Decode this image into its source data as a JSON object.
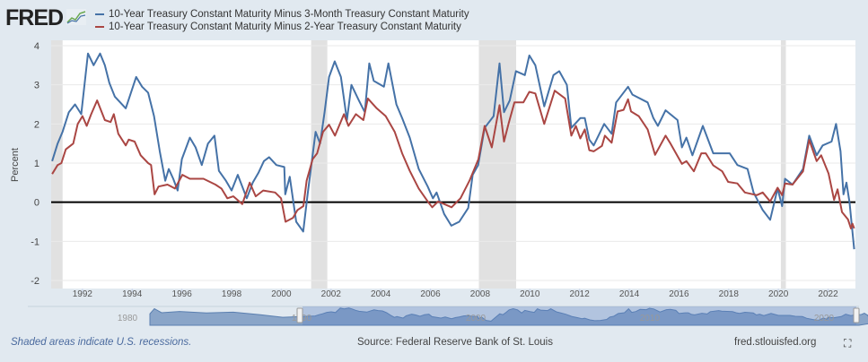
{
  "header": {
    "logo_text": "FRED",
    "legend": [
      {
        "label": "10-Year Treasury Constant Maturity Minus 3-Month Treasury Constant Maturity",
        "color": "#4572a7"
      },
      {
        "label": "10-Year Treasury Constant Maturity Minus 2-Year Treasury Constant Maturity",
        "color": "#aa4643"
      }
    ]
  },
  "footer": {
    "note": "Shaded areas indicate U.S. recessions.",
    "source": "Source: Federal Reserve Bank of St. Louis",
    "link": "fred.stlouisfed.org",
    "fullscreen_icon": "fullscreen-icon"
  },
  "navigator": {
    "labels": [
      "1980",
      "1990",
      "2000",
      "2010",
      "2020"
    ]
  },
  "chart_data": {
    "type": "line",
    "title": "",
    "xlabel": "",
    "ylabel": "Percent",
    "xlim": [
      1990.74,
      2023.1
    ],
    "ylim": [
      -2,
      4
    ],
    "grid": true,
    "legend_position": "top-left",
    "x_ticks": [
      "1992",
      "1994",
      "1996",
      "1998",
      "2000",
      "2002",
      "2004",
      "2006",
      "2008",
      "2010",
      "2012",
      "2014",
      "2016",
      "2018",
      "2020",
      "2022"
    ],
    "y_ticks": [
      "-2",
      "-1",
      "0",
      "1",
      "2",
      "3",
      "4"
    ],
    "recessions": [
      [
        1990.55,
        1991.2
      ],
      [
        2001.2,
        2001.85
      ],
      [
        2007.95,
        2009.45
      ],
      [
        2020.1,
        2020.3
      ]
    ],
    "series": [
      {
        "name": "10-Year Treasury Constant Maturity Minus 3-Month Treasury Constant Maturity",
        "color": "#4572a7",
        "points": [
          [
            1990.78,
            1.05
          ],
          [
            1991.0,
            1.5
          ],
          [
            1991.2,
            1.8
          ],
          [
            1991.45,
            2.3
          ],
          [
            1991.7,
            2.5
          ],
          [
            1991.95,
            2.25
          ],
          [
            1992.22,
            3.8
          ],
          [
            1992.45,
            3.5
          ],
          [
            1992.71,
            3.8
          ],
          [
            1992.9,
            3.5
          ],
          [
            1993.08,
            3.05
          ],
          [
            1993.3,
            2.7
          ],
          [
            1993.74,
            2.4
          ],
          [
            1994.16,
            3.2
          ],
          [
            1994.4,
            2.95
          ],
          [
            1994.64,
            2.8
          ],
          [
            1994.88,
            2.2
          ],
          [
            1995.11,
            1.3
          ],
          [
            1995.33,
            0.55
          ],
          [
            1995.47,
            0.85
          ],
          [
            1995.65,
            0.6
          ],
          [
            1995.83,
            0.3
          ],
          [
            1996.0,
            1.1
          ],
          [
            1996.32,
            1.65
          ],
          [
            1996.55,
            1.4
          ],
          [
            1996.8,
            0.95
          ],
          [
            1997.05,
            1.5
          ],
          [
            1997.31,
            1.7
          ],
          [
            1997.49,
            0.8
          ],
          [
            1997.77,
            0.55
          ],
          [
            1998.0,
            0.3
          ],
          [
            1998.25,
            0.7
          ],
          [
            1998.61,
            0.1
          ],
          [
            1998.85,
            0.5
          ],
          [
            1999.08,
            0.75
          ],
          [
            1999.3,
            1.05
          ],
          [
            1999.51,
            1.15
          ],
          [
            1999.8,
            0.95
          ],
          [
            2000.12,
            0.9
          ],
          [
            2000.16,
            0.2
          ],
          [
            2000.34,
            0.65
          ],
          [
            2000.6,
            -0.5
          ],
          [
            2000.88,
            -0.75
          ],
          [
            2001.06,
            0.2
          ],
          [
            2001.38,
            1.8
          ],
          [
            2001.56,
            1.5
          ],
          [
            2001.74,
            2.3
          ],
          [
            2001.92,
            3.2
          ],
          [
            2002.15,
            3.6
          ],
          [
            2002.4,
            3.2
          ],
          [
            2002.64,
            2.1
          ],
          [
            2002.82,
            3.0
          ],
          [
            2003.12,
            2.6
          ],
          [
            2003.36,
            2.3
          ],
          [
            2003.54,
            3.55
          ],
          [
            2003.72,
            3.1
          ],
          [
            2004.13,
            2.95
          ],
          [
            2004.31,
            3.55
          ],
          [
            2004.63,
            2.5
          ],
          [
            2004.86,
            2.15
          ],
          [
            2005.17,
            1.65
          ],
          [
            2005.53,
            0.85
          ],
          [
            2005.89,
            0.4
          ],
          [
            2006.1,
            0.1
          ],
          [
            2006.25,
            0.25
          ],
          [
            2006.55,
            -0.3
          ],
          [
            2006.84,
            -0.6
          ],
          [
            2007.16,
            -0.5
          ],
          [
            2007.52,
            -0.15
          ],
          [
            2007.7,
            0.7
          ],
          [
            2007.92,
            0.95
          ],
          [
            2008.18,
            1.9
          ],
          [
            2008.54,
            2.2
          ],
          [
            2008.78,
            3.55
          ],
          [
            2008.96,
            2.3
          ],
          [
            2009.19,
            2.6
          ],
          [
            2009.44,
            3.35
          ],
          [
            2009.8,
            3.25
          ],
          [
            2009.98,
            3.75
          ],
          [
            2010.22,
            3.5
          ],
          [
            2010.58,
            2.45
          ],
          [
            2010.95,
            3.25
          ],
          [
            2011.18,
            3.35
          ],
          [
            2011.49,
            3.0
          ],
          [
            2011.67,
            1.9
          ],
          [
            2012.03,
            2.15
          ],
          [
            2012.21,
            2.15
          ],
          [
            2012.39,
            1.6
          ],
          [
            2012.57,
            1.45
          ],
          [
            2012.99,
            2.0
          ],
          [
            2013.29,
            1.75
          ],
          [
            2013.47,
            2.55
          ],
          [
            2013.95,
            2.95
          ],
          [
            2014.13,
            2.75
          ],
          [
            2014.74,
            2.55
          ],
          [
            2014.97,
            2.15
          ],
          [
            2015.15,
            1.95
          ],
          [
            2015.46,
            2.35
          ],
          [
            2015.94,
            2.1
          ],
          [
            2016.12,
            1.4
          ],
          [
            2016.3,
            1.65
          ],
          [
            2016.54,
            1.2
          ],
          [
            2016.96,
            1.95
          ],
          [
            2017.38,
            1.25
          ],
          [
            2018.04,
            1.25
          ],
          [
            2018.35,
            0.95
          ],
          [
            2018.76,
            0.85
          ],
          [
            2019.0,
            0.25
          ],
          [
            2019.37,
            -0.2
          ],
          [
            2019.67,
            -0.45
          ],
          [
            2019.97,
            0.35
          ],
          [
            2020.15,
            -0.1
          ],
          [
            2020.27,
            0.6
          ],
          [
            2020.57,
            0.45
          ],
          [
            2020.99,
            0.85
          ],
          [
            2021.24,
            1.7
          ],
          [
            2021.54,
            1.2
          ],
          [
            2021.78,
            1.45
          ],
          [
            2022.14,
            1.55
          ],
          [
            2022.32,
            2.0
          ],
          [
            2022.5,
            1.3
          ],
          [
            2022.62,
            0.2
          ],
          [
            2022.74,
            0.5
          ],
          [
            2022.86,
            0.0
          ],
          [
            2023.05,
            -1.2
          ]
        ]
      },
      {
        "name": "10-Year Treasury Constant Maturity Minus 2-Year Treasury Constant Maturity",
        "color": "#aa4643",
        "points": [
          [
            1990.78,
            0.72
          ],
          [
            1991.0,
            0.95
          ],
          [
            1991.15,
            1.0
          ],
          [
            1991.33,
            1.35
          ],
          [
            1991.63,
            1.5
          ],
          [
            1991.81,
            2.0
          ],
          [
            1992.0,
            2.2
          ],
          [
            1992.17,
            1.95
          ],
          [
            1992.35,
            2.25
          ],
          [
            1992.59,
            2.6
          ],
          [
            1992.9,
            2.1
          ],
          [
            1993.13,
            2.05
          ],
          [
            1993.26,
            2.25
          ],
          [
            1993.44,
            1.75
          ],
          [
            1993.74,
            1.45
          ],
          [
            1993.86,
            1.6
          ],
          [
            1994.1,
            1.55
          ],
          [
            1994.34,
            1.2
          ],
          [
            1994.64,
            1.0
          ],
          [
            1994.76,
            0.95
          ],
          [
            1994.9,
            0.2
          ],
          [
            1995.06,
            0.4
          ],
          [
            1995.42,
            0.45
          ],
          [
            1995.72,
            0.35
          ],
          [
            1996.02,
            0.7
          ],
          [
            1996.32,
            0.6
          ],
          [
            1996.87,
            0.6
          ],
          [
            1997.35,
            0.45
          ],
          [
            1997.59,
            0.35
          ],
          [
            1997.83,
            0.1
          ],
          [
            1998.07,
            0.15
          ],
          [
            1998.43,
            -0.05
          ],
          [
            1998.73,
            0.5
          ],
          [
            1998.97,
            0.15
          ],
          [
            1999.27,
            0.3
          ],
          [
            1999.75,
            0.25
          ],
          [
            1999.99,
            0.1
          ],
          [
            2000.17,
            -0.5
          ],
          [
            2000.47,
            -0.4
          ],
          [
            2000.65,
            -0.2
          ],
          [
            2000.89,
            -0.1
          ],
          [
            2001.02,
            0.55
          ],
          [
            2001.26,
            1.1
          ],
          [
            2001.44,
            1.25
          ],
          [
            2001.68,
            1.8
          ],
          [
            2001.92,
            1.98
          ],
          [
            2002.16,
            1.7
          ],
          [
            2002.52,
            2.25
          ],
          [
            2002.7,
            1.95
          ],
          [
            2003.0,
            2.25
          ],
          [
            2003.3,
            2.1
          ],
          [
            2003.48,
            2.65
          ],
          [
            2003.84,
            2.4
          ],
          [
            2004.2,
            2.2
          ],
          [
            2004.56,
            1.8
          ],
          [
            2004.86,
            1.25
          ],
          [
            2005.17,
            0.8
          ],
          [
            2005.53,
            0.35
          ],
          [
            2005.89,
            0.02
          ],
          [
            2006.07,
            -0.13
          ],
          [
            2006.31,
            0.02
          ],
          [
            2006.85,
            -0.13
          ],
          [
            2007.21,
            0.1
          ],
          [
            2007.57,
            0.55
          ],
          [
            2007.93,
            1.1
          ],
          [
            2008.18,
            1.95
          ],
          [
            2008.47,
            1.4
          ],
          [
            2008.78,
            2.48
          ],
          [
            2008.96,
            1.55
          ],
          [
            2009.14,
            2.0
          ],
          [
            2009.38,
            2.55
          ],
          [
            2009.74,
            2.55
          ],
          [
            2009.98,
            2.82
          ],
          [
            2010.22,
            2.78
          ],
          [
            2010.58,
            2.0
          ],
          [
            2011.0,
            2.85
          ],
          [
            2011.42,
            2.65
          ],
          [
            2011.67,
            1.7
          ],
          [
            2011.85,
            1.95
          ],
          [
            2012.03,
            1.63
          ],
          [
            2012.21,
            1.86
          ],
          [
            2012.39,
            1.33
          ],
          [
            2012.57,
            1.3
          ],
          [
            2012.9,
            1.44
          ],
          [
            2013.02,
            1.7
          ],
          [
            2013.29,
            1.52
          ],
          [
            2013.53,
            2.32
          ],
          [
            2013.77,
            2.36
          ],
          [
            2013.95,
            2.63
          ],
          [
            2014.07,
            2.32
          ],
          [
            2014.38,
            2.2
          ],
          [
            2014.74,
            1.86
          ],
          [
            2015.04,
            1.21
          ],
          [
            2015.46,
            1.7
          ],
          [
            2015.64,
            1.52
          ],
          [
            2016.12,
            0.98
          ],
          [
            2016.3,
            1.05
          ],
          [
            2016.6,
            0.79
          ],
          [
            2016.9,
            1.25
          ],
          [
            2017.08,
            1.25
          ],
          [
            2017.38,
            0.94
          ],
          [
            2017.74,
            0.79
          ],
          [
            2017.98,
            0.52
          ],
          [
            2018.35,
            0.48
          ],
          [
            2018.65,
            0.25
          ],
          [
            2019.13,
            0.18
          ],
          [
            2019.37,
            0.25
          ],
          [
            2019.67,
            0.02
          ],
          [
            2019.97,
            0.37
          ],
          [
            2020.15,
            0.18
          ],
          [
            2020.27,
            0.48
          ],
          [
            2020.57,
            0.45
          ],
          [
            2020.99,
            0.79
          ],
          [
            2021.24,
            1.59
          ],
          [
            2021.54,
            1.05
          ],
          [
            2021.72,
            1.2
          ],
          [
            2022.02,
            0.73
          ],
          [
            2022.24,
            0.06
          ],
          [
            2022.38,
            0.33
          ],
          [
            2022.56,
            -0.25
          ],
          [
            2022.8,
            -0.44
          ],
          [
            2022.92,
            -0.67
          ],
          [
            2022.98,
            -0.55
          ],
          [
            2023.05,
            -0.67
          ]
        ]
      }
    ]
  }
}
